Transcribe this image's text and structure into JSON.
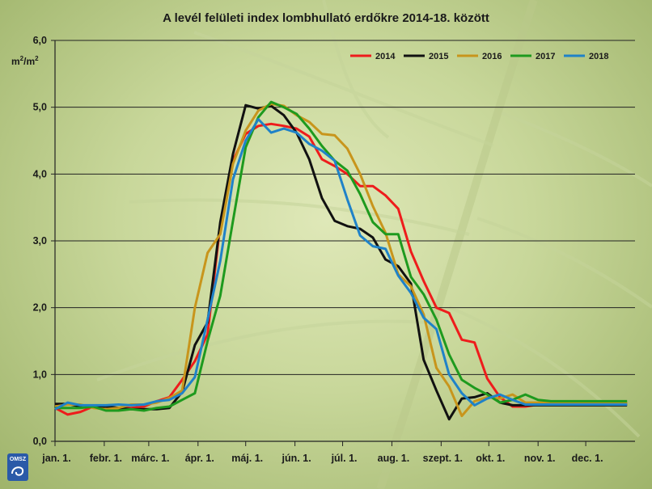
{
  "chart_data": {
    "type": "line",
    "title": "A levél felületi index lombhullató erdőkre 2014-18. között",
    "ylabel": "m²/m²",
    "ylabel_base": "m",
    "ylabel_sup1": "2",
    "ylabel_mid": "/m",
    "ylabel_sup2": "2",
    "ylim": [
      0,
      6
    ],
    "yticks": [
      "0,0",
      "1,0",
      "2,0",
      "3,0",
      "4,0",
      "5,0",
      "6,0"
    ],
    "grid": "horizontal",
    "legend": "top-right",
    "month_labels": [
      "jan. 1.",
      "febr. 1.",
      "márc. 1.",
      "ápr. 1.",
      "máj. 1.",
      "jún. 1.",
      "júl. 1.",
      "aug. 1.",
      "szept. 1.",
      "okt. 1.",
      "nov. 1.",
      "dec. 1."
    ],
    "month_days": [
      1,
      32,
      60,
      91,
      121,
      152,
      182,
      213,
      244,
      274,
      305,
      335
    ],
    "xlim": [
      1,
      366
    ],
    "series": [
      {
        "name": "2014",
        "color": "#ee1c1c",
        "points": [
          [
            1,
            0.5
          ],
          [
            9,
            0.4
          ],
          [
            17,
            0.44
          ],
          [
            25,
            0.52
          ],
          [
            33,
            0.52
          ],
          [
            41,
            0.5
          ],
          [
            49,
            0.5
          ],
          [
            57,
            0.52
          ],
          [
            65,
            0.6
          ],
          [
            73,
            0.66
          ],
          [
            81,
            0.92
          ],
          [
            89,
            1.2
          ],
          [
            97,
            1.6
          ],
          [
            105,
            3.25
          ],
          [
            113,
            4.2
          ],
          [
            121,
            4.6
          ],
          [
            129,
            4.72
          ],
          [
            137,
            4.75
          ],
          [
            145,
            4.72
          ],
          [
            153,
            4.68
          ],
          [
            161,
            4.56
          ],
          [
            169,
            4.22
          ],
          [
            177,
            4.12
          ],
          [
            185,
            4.0
          ],
          [
            193,
            3.82
          ],
          [
            201,
            3.82
          ],
          [
            209,
            3.68
          ],
          [
            217,
            3.48
          ],
          [
            225,
            2.84
          ],
          [
            233,
            2.4
          ],
          [
            241,
            2.0
          ],
          [
            249,
            1.92
          ],
          [
            257,
            1.52
          ],
          [
            265,
            1.48
          ],
          [
            273,
            0.94
          ],
          [
            281,
            0.66
          ],
          [
            289,
            0.52
          ],
          [
            297,
            0.52
          ],
          [
            305,
            0.55
          ],
          [
            313,
            0.55
          ],
          [
            321,
            0.55
          ],
          [
            329,
            0.55
          ],
          [
            337,
            0.55
          ],
          [
            345,
            0.55
          ],
          [
            353,
            0.55
          ],
          [
            361,
            0.58
          ]
        ]
      },
      {
        "name": "2015",
        "color": "#111111",
        "points": [
          [
            1,
            0.56
          ],
          [
            9,
            0.56
          ],
          [
            17,
            0.52
          ],
          [
            25,
            0.52
          ],
          [
            33,
            0.52
          ],
          [
            41,
            0.5
          ],
          [
            49,
            0.48
          ],
          [
            57,
            0.48
          ],
          [
            65,
            0.48
          ],
          [
            73,
            0.5
          ],
          [
            81,
            0.74
          ],
          [
            89,
            1.44
          ],
          [
            97,
            1.78
          ],
          [
            105,
            3.28
          ],
          [
            113,
            4.3
          ],
          [
            121,
            5.03
          ],
          [
            129,
            4.98
          ],
          [
            137,
            5.02
          ],
          [
            145,
            4.88
          ],
          [
            153,
            4.62
          ],
          [
            161,
            4.22
          ],
          [
            169,
            3.64
          ],
          [
            177,
            3.3
          ],
          [
            185,
            3.22
          ],
          [
            193,
            3.18
          ],
          [
            201,
            3.05
          ],
          [
            209,
            2.72
          ],
          [
            217,
            2.62
          ],
          [
            225,
            2.36
          ],
          [
            233,
            1.22
          ],
          [
            241,
            0.76
          ],
          [
            249,
            0.33
          ],
          [
            257,
            0.64
          ],
          [
            265,
            0.66
          ],
          [
            273,
            0.72
          ],
          [
            281,
            0.58
          ],
          [
            289,
            0.54
          ],
          [
            297,
            0.54
          ],
          [
            305,
            0.54
          ],
          [
            313,
            0.54
          ],
          [
            321,
            0.54
          ],
          [
            329,
            0.54
          ],
          [
            337,
            0.54
          ],
          [
            345,
            0.54
          ],
          [
            353,
            0.54
          ],
          [
            361,
            0.54
          ]
        ]
      },
      {
        "name": "2016",
        "color": "#c8951c",
        "points": [
          [
            1,
            0.52
          ],
          [
            9,
            0.55
          ],
          [
            17,
            0.55
          ],
          [
            25,
            0.5
          ],
          [
            33,
            0.48
          ],
          [
            41,
            0.5
          ],
          [
            49,
            0.55
          ],
          [
            57,
            0.55
          ],
          [
            65,
            0.58
          ],
          [
            73,
            0.65
          ],
          [
            81,
            0.76
          ],
          [
            89,
            2.0
          ],
          [
            97,
            2.82
          ],
          [
            105,
            3.1
          ],
          [
            113,
            4.15
          ],
          [
            121,
            4.65
          ],
          [
            129,
            4.95
          ],
          [
            137,
            5.05
          ],
          [
            145,
            5.02
          ],
          [
            153,
            4.88
          ],
          [
            161,
            4.78
          ],
          [
            169,
            4.6
          ],
          [
            177,
            4.58
          ],
          [
            185,
            4.38
          ],
          [
            193,
            4.0
          ],
          [
            201,
            3.52
          ],
          [
            209,
            3.12
          ],
          [
            217,
            2.5
          ],
          [
            225,
            2.32
          ],
          [
            233,
            1.9
          ],
          [
            241,
            1.1
          ],
          [
            249,
            0.82
          ],
          [
            257,
            0.38
          ],
          [
            265,
            0.6
          ],
          [
            273,
            0.66
          ],
          [
            281,
            0.64
          ],
          [
            289,
            0.7
          ],
          [
            297,
            0.58
          ],
          [
            305,
            0.58
          ],
          [
            313,
            0.58
          ],
          [
            321,
            0.58
          ],
          [
            329,
            0.58
          ],
          [
            337,
            0.58
          ],
          [
            345,
            0.58
          ],
          [
            353,
            0.58
          ],
          [
            361,
            0.58
          ]
        ]
      },
      {
        "name": "2017",
        "color": "#1e9a1e",
        "points": [
          [
            1,
            0.5
          ],
          [
            9,
            0.5
          ],
          [
            17,
            0.5
          ],
          [
            25,
            0.52
          ],
          [
            33,
            0.46
          ],
          [
            41,
            0.46
          ],
          [
            49,
            0.48
          ],
          [
            57,
            0.46
          ],
          [
            65,
            0.5
          ],
          [
            73,
            0.52
          ],
          [
            81,
            0.62
          ],
          [
            89,
            0.72
          ],
          [
            97,
            1.5
          ],
          [
            105,
            2.18
          ],
          [
            113,
            3.3
          ],
          [
            121,
            4.4
          ],
          [
            129,
            4.85
          ],
          [
            137,
            5.08
          ],
          [
            145,
            5.0
          ],
          [
            153,
            4.9
          ],
          [
            161,
            4.68
          ],
          [
            169,
            4.42
          ],
          [
            177,
            4.2
          ],
          [
            185,
            4.05
          ],
          [
            193,
            3.7
          ],
          [
            201,
            3.28
          ],
          [
            209,
            3.1
          ],
          [
            217,
            3.1
          ],
          [
            225,
            2.46
          ],
          [
            233,
            2.2
          ],
          [
            241,
            1.82
          ],
          [
            249,
            1.3
          ],
          [
            257,
            0.92
          ],
          [
            265,
            0.8
          ],
          [
            273,
            0.7
          ],
          [
            281,
            0.58
          ],
          [
            289,
            0.62
          ],
          [
            297,
            0.7
          ],
          [
            305,
            0.62
          ],
          [
            313,
            0.6
          ],
          [
            321,
            0.6
          ],
          [
            329,
            0.6
          ],
          [
            337,
            0.6
          ],
          [
            345,
            0.6
          ],
          [
            353,
            0.6
          ],
          [
            361,
            0.6
          ]
        ]
      },
      {
        "name": "2018",
        "color": "#1f82c8",
        "points": [
          [
            1,
            0.48
          ],
          [
            9,
            0.58
          ],
          [
            17,
            0.54
          ],
          [
            25,
            0.54
          ],
          [
            33,
            0.54
          ],
          [
            41,
            0.55
          ],
          [
            49,
            0.54
          ],
          [
            57,
            0.55
          ],
          [
            65,
            0.6
          ],
          [
            73,
            0.62
          ],
          [
            81,
            0.72
          ],
          [
            89,
            0.96
          ],
          [
            97,
            1.82
          ],
          [
            105,
            2.7
          ],
          [
            113,
            3.92
          ],
          [
            121,
            4.5
          ],
          [
            129,
            4.82
          ],
          [
            137,
            4.62
          ],
          [
            145,
            4.68
          ],
          [
            153,
            4.62
          ],
          [
            161,
            4.45
          ],
          [
            169,
            4.35
          ],
          [
            177,
            4.2
          ],
          [
            185,
            3.62
          ],
          [
            193,
            3.08
          ],
          [
            201,
            2.92
          ],
          [
            209,
            2.88
          ],
          [
            217,
            2.48
          ],
          [
            225,
            2.22
          ],
          [
            233,
            1.85
          ],
          [
            241,
            1.68
          ],
          [
            249,
            1.0
          ],
          [
            257,
            0.72
          ],
          [
            265,
            0.54
          ],
          [
            273,
            0.64
          ],
          [
            281,
            0.7
          ],
          [
            289,
            0.62
          ],
          [
            297,
            0.55
          ],
          [
            305,
            0.55
          ],
          [
            313,
            0.55
          ],
          [
            321,
            0.55
          ],
          [
            329,
            0.55
          ],
          [
            337,
            0.55
          ],
          [
            345,
            0.55
          ],
          [
            353,
            0.55
          ],
          [
            361,
            0.55
          ]
        ]
      }
    ]
  },
  "logo": {
    "text": "OMSZ"
  }
}
